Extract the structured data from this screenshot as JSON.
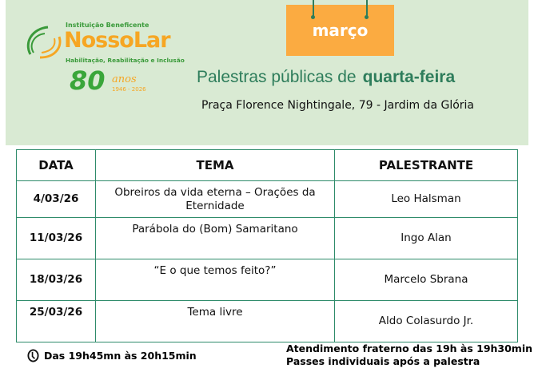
{
  "logo": {
    "institution": "Instituição Beneficente",
    "name_part1": "Nosso",
    "name_part2": "Lar",
    "tagline": "Habilitação, Reabilitação e Inclusão",
    "anniversary": "80",
    "anos": "anos",
    "years": "1946 - 2026"
  },
  "sign": {
    "month": "março"
  },
  "header": {
    "title": "Palestras públicas de",
    "title_bold": "quarta-feira",
    "address": "Praça Florence Nightingale, 79 - Jardim da Glória"
  },
  "table": {
    "headers": [
      "DATA",
      "TEMA",
      "PALESTRANTE"
    ],
    "rows": [
      {
        "date": "4/03/26",
        "tema": "Obreiros da vida eterna – Orações da Eternidade",
        "palestrante": "Leo Halsman"
      },
      {
        "date": "11/03/26",
        "tema": "Parábola do (Bom) Samaritano",
        "palestrante": "Ingo Alan"
      },
      {
        "date": "18/03/26",
        "tema": "“E o que temos feito?”",
        "palestrante": "Marcelo Sbrana"
      },
      {
        "date": "25/03/26",
        "tema": "Tema livre",
        "palestrante": "Aldo Colasurdo Jr."
      }
    ]
  },
  "footer": {
    "schedule": "Das 19h45mn às 20h15min",
    "clock_icon": "clock-icon",
    "atendimento": "Atendimento fraterno das 19h às 19h30min",
    "passes": "Passes individuais após a palestra"
  },
  "colors": {
    "band": "#d9ead3",
    "accent_orange": "#fbab41",
    "green": "#2e7d5b"
  }
}
